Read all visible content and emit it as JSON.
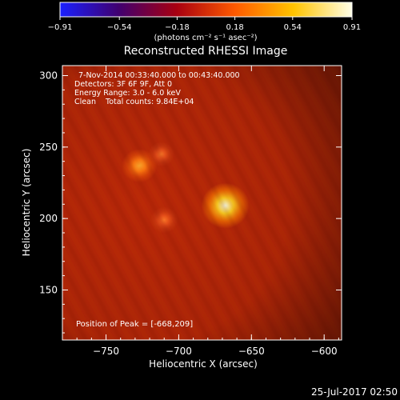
{
  "chart_data": {
    "type": "heatmap",
    "title": "Reconstructed RHESSI Image",
    "xlabel": "Heliocentric X (arcsec)",
    "ylabel": "Heliocentric Y (arcsec)",
    "xlim": [
      -780,
      -588
    ],
    "ylim": [
      115,
      307
    ],
    "x_ticks": [
      -750,
      -700,
      -650,
      -600
    ],
    "x_tick_labels": [
      "−750",
      "−700",
      "−650",
      "−600"
    ],
    "y_ticks": [
      150,
      200,
      250,
      300
    ],
    "y_tick_labels": [
      "150",
      "200",
      "250",
      "300"
    ],
    "colorbar": {
      "range": [
        -0.91,
        0.91
      ],
      "ticks": [
        -0.91,
        -0.54,
        -0.18,
        0.18,
        0.54,
        0.91
      ],
      "tick_labels": [
        "−0.91",
        "−0.54",
        "−0.18",
        "0.18",
        "0.54",
        "0.91"
      ],
      "unit_label": "(photons cm⁻² s⁻¹ asec⁻²)",
      "colors": [
        "#1a20ff",
        "#400070",
        "#a80010",
        "#ff5a00",
        "#ffc400",
        "#ffffe8"
      ]
    },
    "background_color": "#b82808",
    "sources": [
      {
        "x": -668,
        "y": 209,
        "peak": 0.91
      },
      {
        "x": -727,
        "y": 237,
        "peak": 0.55
      },
      {
        "x": -710,
        "y": 199,
        "peak": 0.33
      },
      {
        "x": -712,
        "y": 245,
        "peak": 0.28
      }
    ],
    "annotations": [
      "7-Nov-2014 00:33:40.000 to 00:43:40.000",
      "Detectors: 3F 6F 9F, Att 0",
      "Energy Range: 3.0 - 6.0 keV",
      "Clean    Total counts: 9.84E+04"
    ],
    "peak_label": "Position of Peak = [-668,209]",
    "timestamp": "25-Jul-2017 02:50"
  }
}
